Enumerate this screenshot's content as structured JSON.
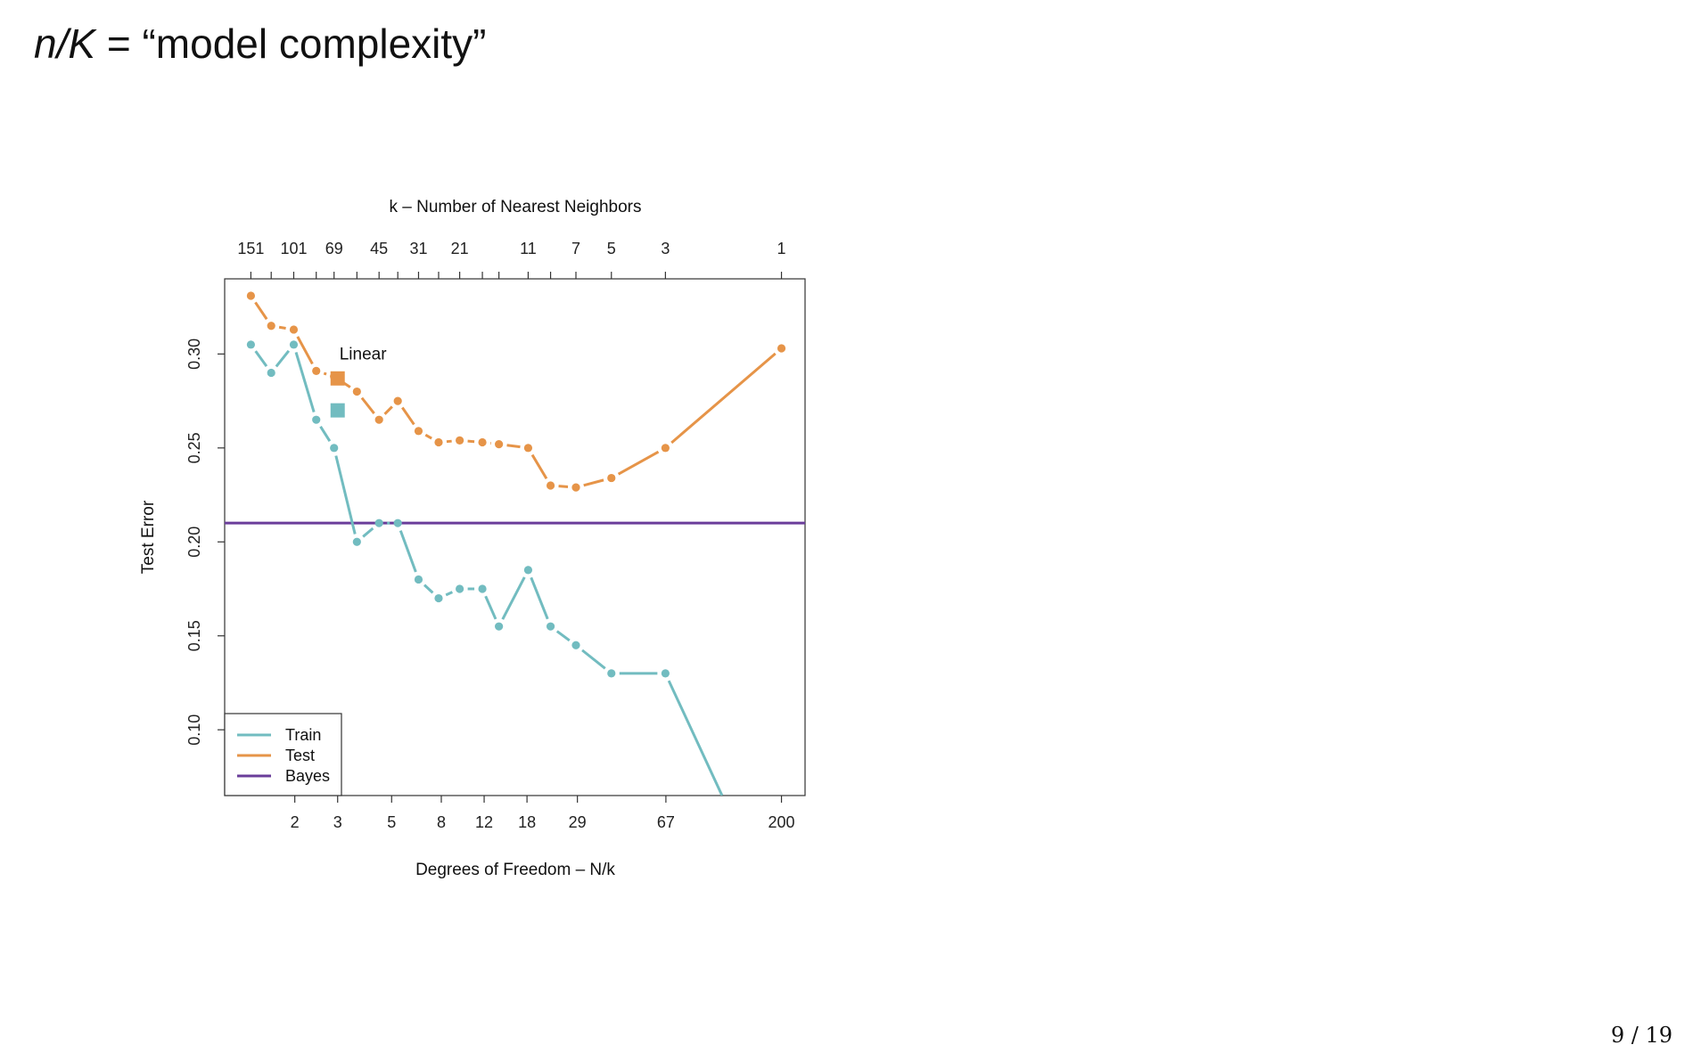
{
  "slide": {
    "title_math": "n/K",
    "title_eq": " = ",
    "title_text": "“model complexity”",
    "page_number": "9 / 19"
  },
  "chart_data": {
    "type": "line",
    "top_axis_label": "k –  Number of Nearest Neighbors",
    "xlabel": "Degrees of Freedom – N/k",
    "ylabel": "Test Error",
    "x_scale": "log",
    "xlim": [
      1.03,
      250
    ],
    "ylim": [
      0.065,
      0.34
    ],
    "bottom_ticks": [
      2,
      3,
      5,
      8,
      12,
      18,
      29,
      67,
      200
    ],
    "top_ticks": [
      {
        "label": "151",
        "df": 1.32
      },
      {
        "label": "101",
        "df": 1.98
      },
      {
        "label": "69",
        "df": 2.9
      },
      {
        "label": "45",
        "df": 4.44
      },
      {
        "label": "31",
        "df": 6.45
      },
      {
        "label": "21",
        "df": 9.52
      },
      {
        "label": "11",
        "df": 18.2
      },
      {
        "label": "7",
        "df": 28.6
      },
      {
        "label": "5",
        "df": 40
      },
      {
        "label": "3",
        "df": 66.7
      },
      {
        "label": "1",
        "df": 200
      }
    ],
    "top_minor_ticks": [
      1.6,
      2.45,
      3.6,
      5.3,
      7.8,
      11.8,
      13.8,
      22.5
    ],
    "yticks": [
      0.1,
      0.15,
      0.2,
      0.25,
      0.3
    ],
    "ytick_labels": [
      "0.10",
      "0.15",
      "0.20",
      "0.25",
      "0.30"
    ],
    "grid": false,
    "legend_position": "bottom-left",
    "series": [
      {
        "name": "Train",
        "color": "#72bcc0",
        "x": [
          1.32,
          1.6,
          1.98,
          2.45,
          2.9,
          3.6,
          4.44,
          5.3,
          6.45,
          7.8,
          9.52,
          11.8,
          13.8,
          18.2,
          22.5,
          28.6,
          40,
          66.7,
          114
        ],
        "y": [
          0.305,
          0.29,
          0.305,
          0.265,
          0.25,
          0.2,
          0.21,
          0.21,
          0.18,
          0.17,
          0.175,
          0.175,
          0.155,
          0.185,
          0.155,
          0.145,
          0.13,
          0.13,
          0.065
        ],
        "markers_count": 18
      },
      {
        "name": "Test",
        "color": "#e69448",
        "x": [
          1.32,
          1.6,
          1.98,
          2.45,
          2.9,
          3.6,
          4.44,
          5.3,
          6.45,
          7.8,
          9.52,
          11.8,
          13.8,
          18.2,
          22.5,
          28.6,
          40,
          66.7,
          200
        ],
        "y": [
          0.331,
          0.315,
          0.313,
          0.291,
          0.288,
          0.28,
          0.265,
          0.275,
          0.259,
          0.253,
          0.254,
          0.253,
          0.252,
          0.25,
          0.23,
          0.229,
          0.234,
          0.25,
          0.303
        ],
        "markers_count": 19
      },
      {
        "name": "Bayes",
        "color": "#6a3d9a",
        "y": 0.21
      }
    ],
    "linear_points": [
      {
        "series": "Test",
        "x": 3,
        "y": 0.287,
        "color": "#e69448"
      },
      {
        "series": "Train",
        "x": 3,
        "y": 0.27,
        "color": "#72bcc0"
      }
    ],
    "annotations": [
      {
        "text": "Linear",
        "x": 3,
        "y": 0.297
      }
    ]
  }
}
